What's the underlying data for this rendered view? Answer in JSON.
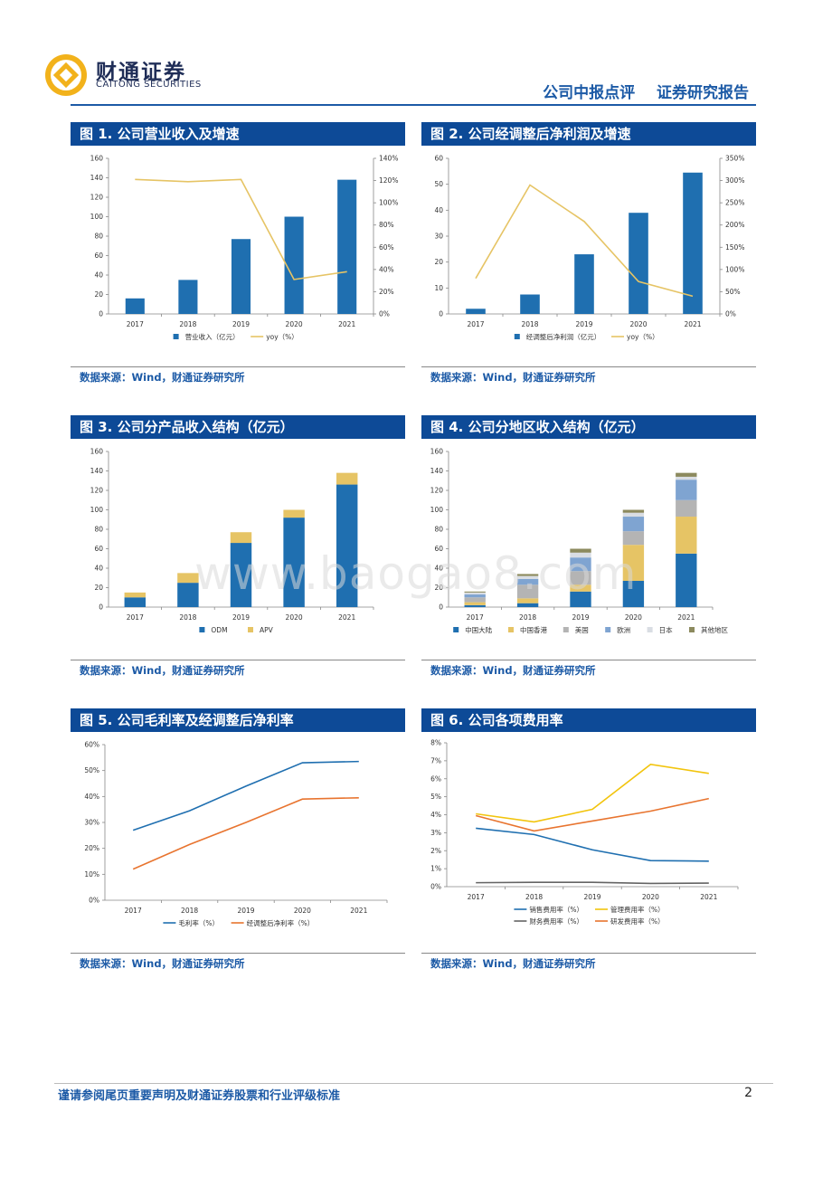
{
  "header": {
    "brand_cn": "财通证券",
    "brand_en": "CAITONG SECURITIES",
    "report_type": "公司中报点评",
    "report_kind": "证券研究报告"
  },
  "figures": [
    {
      "title": "图 1. 公司营业收入及增速",
      "source": "数据来源：Wind，财通证券研究所"
    },
    {
      "title": "图 2. 公司经调整后净利润及增速",
      "source": "数据来源：Wind，财通证券研究所"
    },
    {
      "title": "图 3. 公司分产品收入结构（亿元）",
      "source": "数据来源：Wind，财通证券研究所"
    },
    {
      "title": "图 4. 公司分地区收入结构（亿元）",
      "source": "数据来源：Wind，财通证券研究所"
    },
    {
      "title": "图 5. 公司毛利率及经调整后净利率",
      "source": "数据来源：Wind，财通证券研究所"
    },
    {
      "title": "图 6. 公司各项费用率",
      "source": "数据来源：Wind，财通证券研究所"
    }
  ],
  "watermark": "www.baogao8.com",
  "footer": {
    "disclaimer": "谨请参阅尾页重要声明及财通证券股票和行业评级标准",
    "page": "2"
  },
  "colors": {
    "blue": "#1f6fb0",
    "gold": "#e6c465",
    "gray": "#b4b4b4",
    "lightblue": "#7fa4d1",
    "lightgray": "#d9dde3",
    "olive": "#8c8a5e",
    "orange": "#e8742f",
    "yellow": "#f2c40d",
    "dark": "#646464",
    "title_bar": "#0d4a97"
  },
  "chart_data": [
    {
      "id": "c1",
      "type": "bar+line",
      "categories": [
        "2017",
        "2018",
        "2019",
        "2020",
        "2021"
      ],
      "series": [
        {
          "name": "营业收入（亿元）",
          "kind": "bar",
          "axis": "left",
          "color": "#1f6fb0",
          "values": [
            16,
            35,
            77,
            100,
            138
          ]
        }
      ],
      "line_series": [
        {
          "name": "yoy（%）",
          "kind": "line",
          "axis": "right",
          "color": "#e6c465",
          "values": [
            121,
            119,
            121,
            31,
            38
          ]
        }
      ],
      "ylim": [
        0,
        160
      ],
      "yticks": [
        0,
        20,
        40,
        60,
        80,
        100,
        120,
        140,
        160
      ],
      "y2lim": [
        0,
        140
      ],
      "y2ticks": [
        "0%",
        "20%",
        "40%",
        "60%",
        "80%",
        "100%",
        "120%",
        "140%"
      ]
    },
    {
      "id": "c2",
      "type": "bar+line",
      "categories": [
        "2017",
        "2018",
        "2019",
        "2020",
        "2021"
      ],
      "series": [
        {
          "name": "经调整后净利润（亿元）",
          "kind": "bar",
          "axis": "left",
          "color": "#1f6fb0",
          "values": [
            2,
            7.5,
            23,
            39,
            54.5
          ]
        }
      ],
      "line_series": [
        {
          "name": "yoy（%）",
          "kind": "line",
          "axis": "right",
          "color": "#e6c465",
          "values": [
            80,
            290,
            208,
            73,
            40
          ]
        }
      ],
      "ylim": [
        0,
        60
      ],
      "yticks": [
        0,
        10,
        20,
        30,
        40,
        50,
        60
      ],
      "y2lim": [
        0,
        350
      ],
      "y2ticks": [
        "0%",
        "50%",
        "100%",
        "150%",
        "200%",
        "250%",
        "300%",
        "350%"
      ]
    },
    {
      "id": "c3",
      "type": "stacked-bar",
      "categories": [
        "2017",
        "2018",
        "2019",
        "2020",
        "2021"
      ],
      "series": [
        {
          "name": "ODM",
          "color": "#1f6fb0",
          "values": [
            10,
            25,
            66,
            92,
            126
          ]
        },
        {
          "name": "APV",
          "color": "#e6c465",
          "values": [
            5,
            10,
            11,
            8,
            12
          ]
        }
      ],
      "ylim": [
        0,
        160
      ],
      "yticks": [
        0,
        20,
        40,
        60,
        80,
        100,
        120,
        140,
        160
      ]
    },
    {
      "id": "c4",
      "type": "stacked-bar",
      "categories": [
        "2017",
        "2018",
        "2019",
        "2020",
        "2021"
      ],
      "series": [
        {
          "name": "中国大陆",
          "color": "#1f6fb0",
          "values": [
            2,
            4,
            16,
            27,
            55
          ]
        },
        {
          "name": "中国香港",
          "color": "#e6c465",
          "values": [
            3,
            5,
            7,
            37,
            38
          ]
        },
        {
          "name": "美国",
          "color": "#b4b4b4",
          "values": [
            5,
            14,
            14,
            14,
            17
          ]
        },
        {
          "name": "欧洲",
          "color": "#7fa4d1",
          "values": [
            3,
            6,
            14,
            15,
            21
          ]
        },
        {
          "name": "日本",
          "color": "#d9dde3",
          "values": [
            2,
            3,
            5,
            4,
            3
          ]
        },
        {
          "name": "其他地区",
          "color": "#8c8a5e",
          "values": [
            1,
            2,
            4,
            3,
            4
          ]
        }
      ],
      "ylim": [
        0,
        160
      ],
      "yticks": [
        0,
        20,
        40,
        60,
        80,
        100,
        120,
        140,
        160
      ]
    },
    {
      "id": "c5",
      "type": "line",
      "categories": [
        "2017",
        "2018",
        "2019",
        "2020",
        "2021"
      ],
      "series": [
        {
          "name": "毛利率（%）",
          "color": "#1f6fb0",
          "values": [
            27,
            34.5,
            44,
            53,
            53.5
          ]
        },
        {
          "name": "经调整后净利率（%）",
          "color": "#e8742f",
          "values": [
            12,
            21.5,
            30,
            39,
            39.5
          ]
        }
      ],
      "ylim": [
        0,
        60
      ],
      "yticks": [
        "0%",
        "10%",
        "20%",
        "30%",
        "40%",
        "50%",
        "60%"
      ]
    },
    {
      "id": "c6",
      "type": "line",
      "categories": [
        "2017",
        "2018",
        "2019",
        "2020",
        "2021"
      ],
      "series": [
        {
          "name": "销售费用率（%）",
          "color": "#1f6fb0",
          "values": [
            3.25,
            2.9,
            2.05,
            1.45,
            1.42
          ]
        },
        {
          "name": "管理费用率（%）",
          "color": "#f2c40d",
          "values": [
            4.05,
            3.6,
            4.3,
            6.8,
            6.3
          ]
        },
        {
          "name": "财务费用率（%）",
          "color": "#646464",
          "values": [
            0.22,
            0.24,
            0.24,
            0.18,
            0.2
          ]
        },
        {
          "name": "研发费用率（%）",
          "color": "#e8742f",
          "values": [
            3.95,
            3.1,
            3.65,
            4.2,
            4.9
          ]
        }
      ],
      "ylim": [
        0,
        8
      ],
      "yticks": [
        "0%",
        "1%",
        "2%",
        "3%",
        "4%",
        "5%",
        "6%",
        "7%",
        "8%"
      ]
    }
  ]
}
